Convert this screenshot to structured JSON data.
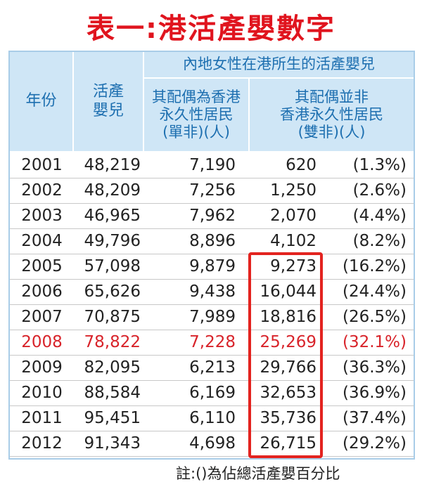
{
  "title": "表一:港活產嬰數字",
  "header": {
    "year": "年份",
    "births": "活產\n嬰兒",
    "group": "內地女性在港所生的活產嬰兒",
    "single": "其配偶為香港\n永久性居民\n(單非)(人)",
    "double": "其配偶並非\n香港永久性居民\n(雙非)(人)"
  },
  "table": {
    "rows": [
      [
        "2001",
        "48,219",
        "7,190",
        "620",
        "(1.3%)"
      ],
      [
        "2002",
        "48,209",
        "7,256",
        "1,250",
        "(2.6%)"
      ],
      [
        "2003",
        "46,965",
        "7,962",
        "2,070",
        "(4.4%)"
      ],
      [
        "2004",
        "49,796",
        "8,896",
        "4,102",
        "(8.2%)"
      ],
      [
        "2005",
        "57,098",
        "9,879",
        "9,273",
        "(16.2%)"
      ],
      [
        "2006",
        "65,626",
        "9,438",
        "16,044",
        "(24.4%)"
      ],
      [
        "2007",
        "70,875",
        "7,989",
        "18,816",
        "(26.5%)"
      ],
      [
        "2008",
        "78,822",
        "7,228",
        "25,269",
        "(32.1%)"
      ],
      [
        "2009",
        "82,095",
        "6,213",
        "29,766",
        "(36.3%)"
      ],
      [
        "2010",
        "88,584",
        "6,169",
        "32,653",
        "(36.9%)"
      ],
      [
        "2011",
        "95,451",
        "6,110",
        "35,736",
        "(37.4%)"
      ],
      [
        "2012",
        "91,343",
        "4,698",
        "26,715",
        "(29.2%)"
      ]
    ]
  },
  "note": "註:()為佔總活產嬰百分比"
}
